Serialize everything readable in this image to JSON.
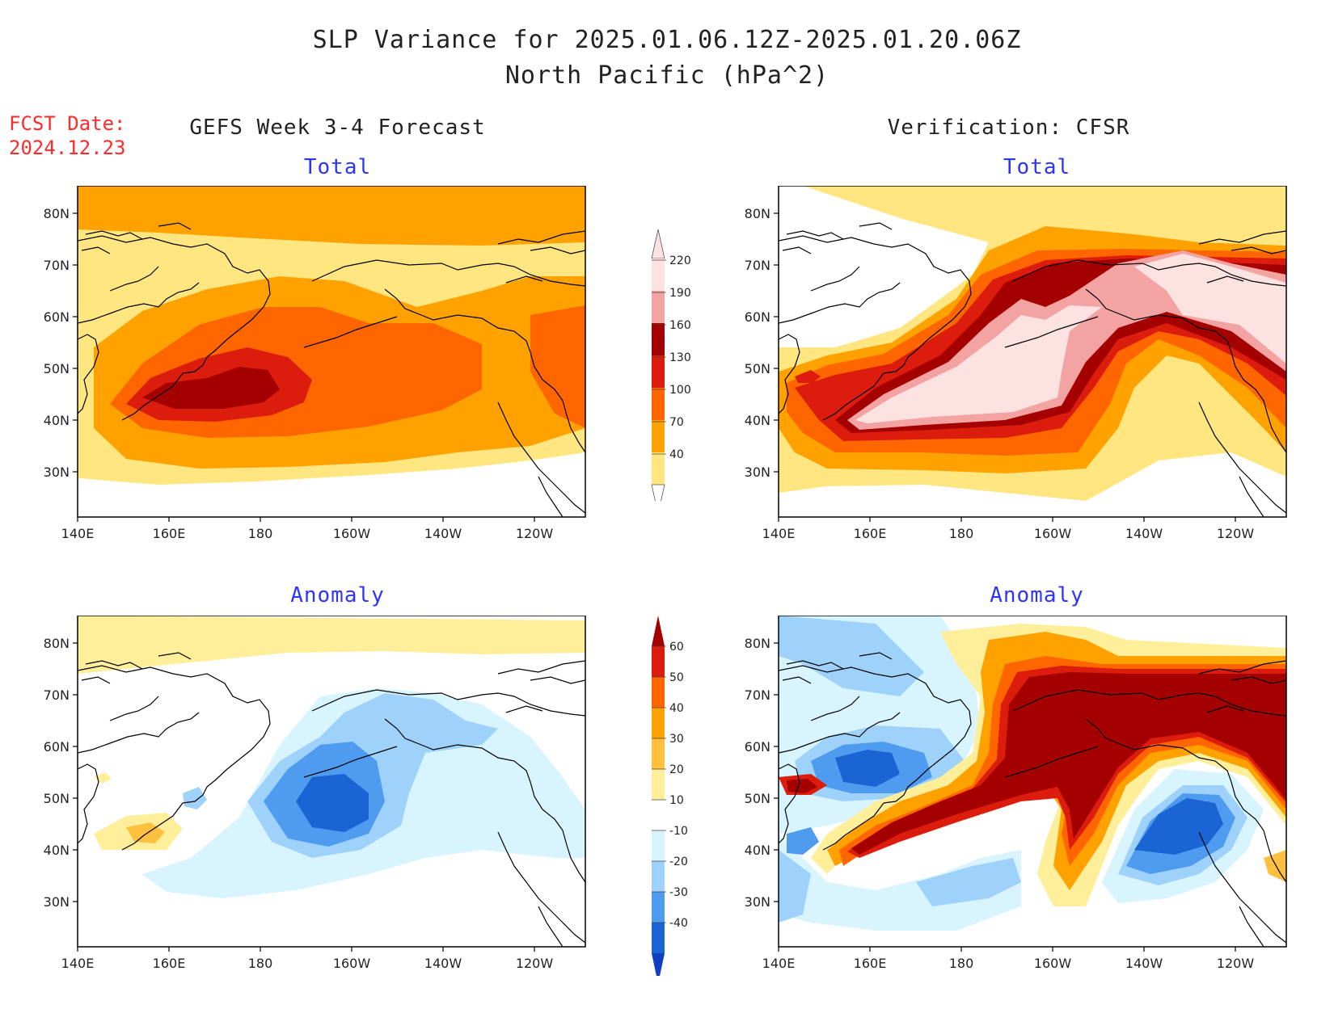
{
  "header": {
    "title_line1": "SLP Variance for 2025.01.06.12Z-2025.01.20.06Z",
    "title_line2": "North Pacific (hPa^2)",
    "fcst_label": "FCST Date:",
    "fcst_date": "2024.12.23"
  },
  "columns": {
    "left_title": "GEFS Week 3-4 Forecast",
    "right_title": "Verification: CFSR"
  },
  "panels": {
    "top_left_sub": "Total",
    "top_right_sub": "Total",
    "bottom_left_sub": "Anomaly",
    "bottom_right_sub": "Anomaly"
  },
  "axes": {
    "lat_labels": [
      "80N",
      "70N",
      "60N",
      "50N",
      "40N",
      "30N"
    ],
    "lon_labels": [
      "140E",
      "160E",
      "180",
      "160W",
      "140W",
      "120W"
    ]
  },
  "colorbar_total": {
    "labels": [
      "220",
      "190",
      "160",
      "130",
      "100",
      "70",
      "40"
    ],
    "colors": [
      "#fde2e2",
      "#f4a3a3",
      "#a50000",
      "#dc1c0c",
      "#ff6600",
      "#ffa200",
      "#ffe680"
    ]
  },
  "colorbar_anomaly": {
    "labels": [
      "60",
      "50",
      "40",
      "30",
      "20",
      "10",
      "-10",
      "-20",
      "-30",
      "-40"
    ],
    "colors": [
      "#a50000",
      "#dc1c0c",
      "#ff6600",
      "#ffa200",
      "#ffc040",
      "#ffef9a",
      "#ffffff",
      "#d8f4ff",
      "#9fd2fa",
      "#4e9bf0",
      "#1a64d4",
      "#1040c0"
    ]
  }
}
